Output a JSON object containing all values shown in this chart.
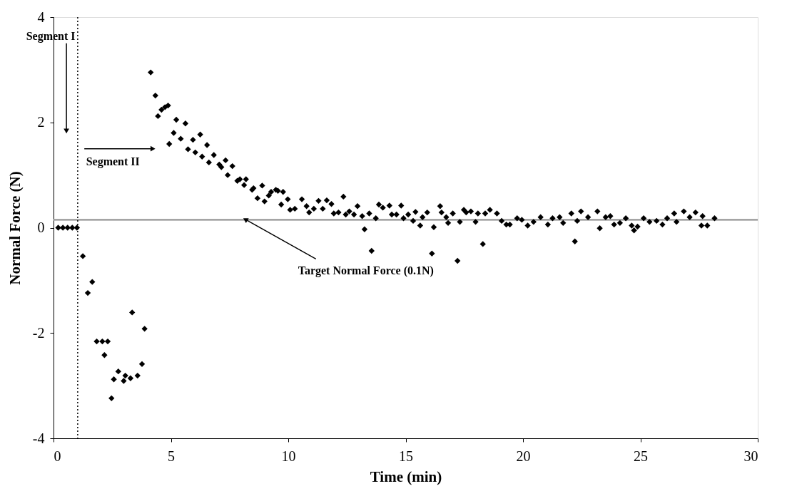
{
  "chart_data": {
    "type": "scatter",
    "xlabel": "Time (min)",
    "ylabel": "Normal Force (N)",
    "xlim": [
      0,
      30
    ],
    "xticks": [
      0,
      5,
      10,
      15,
      20,
      25,
      30
    ],
    "ylim": [
      -4,
      4
    ],
    "yticks": [
      -4,
      -2,
      0,
      2,
      4
    ],
    "grid": false,
    "marker": "diamond",
    "series": [
      {
        "color": "#000000",
        "x": [
          0.2,
          0.4,
          0.6,
          0.8,
          1.0,
          1.25,
          1.46,
          1.65,
          1.84,
          2.08,
          2.17,
          2.31,
          2.47,
          2.57,
          2.76,
          2.99,
          3.06,
          3.28,
          3.35,
          3.58,
          3.77,
          3.88,
          4.14,
          4.34,
          4.45,
          4.6,
          4.75,
          4.88,
          4.93,
          5.12,
          5.23,
          5.42,
          5.62,
          5.73,
          5.94,
          6.04,
          6.25,
          6.33,
          6.54,
          6.62,
          6.83,
          7.06,
          7.15,
          7.33,
          7.42,
          7.62,
          7.83,
          7.94,
          8.12,
          8.2,
          8.46,
          8.52,
          8.69,
          8.89,
          8.99,
          9.17,
          9.27,
          9.47,
          9.56,
          9.7,
          9.78,
          9.98,
          10.08,
          10.28,
          10.58,
          10.78,
          10.89,
          11.09,
          11.29,
          11.47,
          11.64,
          11.84,
          11.94,
          12.14,
          12.35,
          12.45,
          12.6,
          12.8,
          12.95,
          13.15,
          13.25,
          13.45,
          13.55,
          13.73,
          13.86,
          14.03,
          14.31,
          14.41,
          14.61,
          14.81,
          14.91,
          15.11,
          15.32,
          15.42,
          15.62,
          15.72,
          15.92,
          16.12,
          16.2,
          16.47,
          16.53,
          16.73,
          16.81,
          17.01,
          17.21,
          17.31,
          17.48,
          17.58,
          17.78,
          17.98,
          18.08,
          18.29,
          18.39,
          18.59,
          18.89,
          19.09,
          19.29,
          19.44,
          19.75,
          19.95,
          20.2,
          20.45,
          20.75,
          21.06,
          21.26,
          21.56,
          21.71,
          22.06,
          22.21,
          22.31,
          22.47,
          22.77,
          23.17,
          23.27,
          23.52,
          23.72,
          23.88,
          24.13,
          24.38,
          24.63,
          24.73,
          24.88,
          25.14,
          25.39,
          25.69,
          25.94,
          26.14,
          26.44,
          26.54,
          26.85,
          27.1,
          27.35,
          27.6,
          27.65,
          27.85,
          28.16
        ],
        "values": [
          0,
          0,
          0,
          0,
          0,
          -0.54,
          -1.24,
          -1.03,
          -2.16,
          -2.16,
          -2.42,
          -2.16,
          -3.24,
          -2.88,
          -2.73,
          -2.91,
          -2.81,
          -2.86,
          -1.61,
          -2.81,
          -2.59,
          -1.92,
          2.95,
          2.51,
          2.12,
          2.24,
          2.29,
          2.32,
          1.59,
          1.8,
          2.05,
          1.69,
          1.98,
          1.49,
          1.67,
          1.43,
          1.77,
          1.35,
          1.57,
          1.24,
          1.38,
          1.2,
          1.15,
          1.28,
          1.0,
          1.17,
          0.89,
          0.92,
          0.81,
          0.92,
          0.72,
          0.75,
          0.56,
          0.8,
          0.5,
          0.61,
          0.68,
          0.72,
          0.7,
          0.44,
          0.68,
          0.54,
          0.34,
          0.36,
          0.54,
          0.41,
          0.29,
          0.36,
          0.51,
          0.36,
          0.52,
          0.45,
          0.27,
          0.29,
          0.59,
          0.25,
          0.31,
          0.25,
          0.41,
          0.22,
          -0.03,
          0.27,
          -0.44,
          0.18,
          0.44,
          0.38,
          0.42,
          0.25,
          0.25,
          0.42,
          0.18,
          0.25,
          0.13,
          0.3,
          0.04,
          0.2,
          0.29,
          -0.49,
          0.01,
          0.41,
          0.29,
          0.2,
          0.09,
          0.27,
          -0.63,
          0.11,
          0.34,
          0.29,
          0.31,
          0.11,
          0.27,
          -0.31,
          0.27,
          0.34,
          0.27,
          0.13,
          0.06,
          0.06,
          0.18,
          0.15,
          0.04,
          0.11,
          0.2,
          0.06,
          0.18,
          0.2,
          0.09,
          0.27,
          -0.26,
          0.13,
          0.31,
          0.2,
          0.31,
          -0.01,
          0.2,
          0.22,
          0.06,
          0.09,
          0.18,
          0.04,
          -0.05,
          0.02,
          0.18,
          0.11,
          0.13,
          0.06,
          0.18,
          0.27,
          0.11,
          0.31,
          0.2,
          0.29,
          0.04,
          0.22,
          0.04,
          0.18
        ]
      }
    ],
    "ref_lines": [
      {
        "axis": "y",
        "value": 0.15,
        "color": "#888888",
        "line_style": "solid"
      },
      {
        "axis": "x",
        "value": 1.03,
        "color": "#000000",
        "line_style": "dotted"
      }
    ],
    "annotations": [
      {
        "text": "Segment I",
        "x": 0.55,
        "y": 1.85
      },
      {
        "text": "Segment II",
        "x": 4.2,
        "y": 1.5
      },
      {
        "text": "Target Normal Force (0.1N)",
        "x": 8.2,
        "y": 0.15
      }
    ]
  }
}
